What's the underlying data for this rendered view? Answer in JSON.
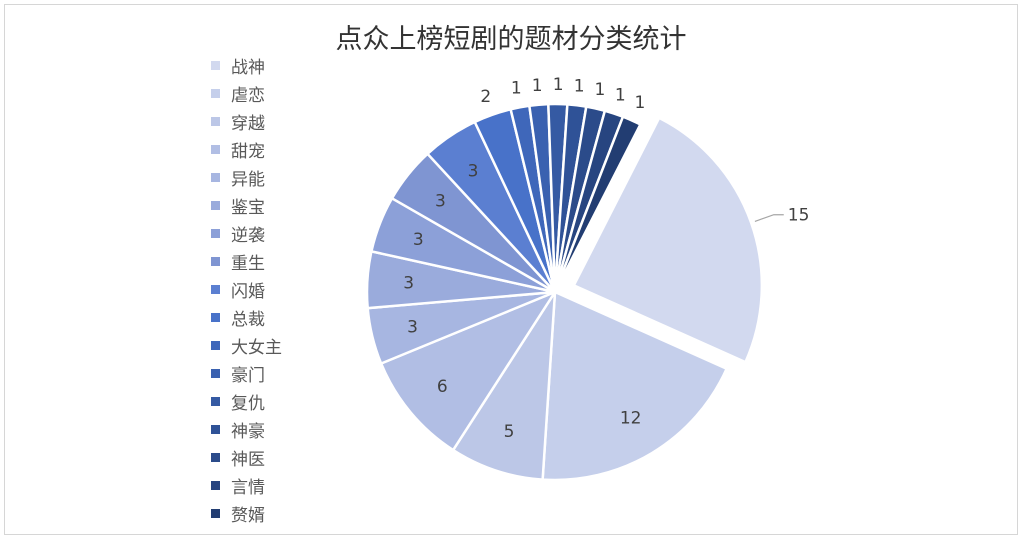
{
  "title": "点众上榜短剧的题材分类统计",
  "chart_data": {
    "type": "pie",
    "title": "点众上榜短剧的题材分类统计",
    "legend_position": "left",
    "categories": [
      "战神",
      "虐恋",
      "穿越",
      "甜宠",
      "异能",
      "鉴宝",
      "逆袭",
      "重生",
      "闪婚",
      "总裁",
      "大女主",
      "豪门",
      "复仇",
      "神豪",
      "神医",
      "言情",
      "赘婿"
    ],
    "values": [
      15,
      12,
      5,
      6,
      3,
      3,
      3,
      3,
      3,
      2,
      1,
      1,
      1,
      1,
      1,
      1,
      1
    ],
    "exploded_category": "战神",
    "colors": [
      "#d2d9ef",
      "#c5cfeb",
      "#bcc7e7",
      "#b1bee4",
      "#a7b6e1",
      "#9aabdc",
      "#8ca0d8",
      "#7f95d2",
      "#5b7fd1",
      "#4872c9",
      "#3f67ba",
      "#3a61b0",
      "#355aa3",
      "#2f5297",
      "#2b4b8a",
      "#274580",
      "#223d72"
    ]
  }
}
